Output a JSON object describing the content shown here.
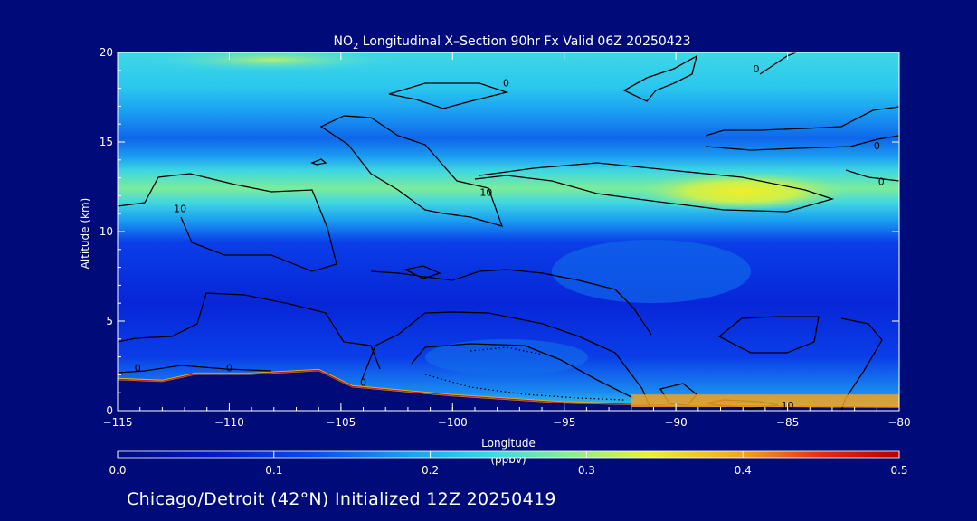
{
  "chart_data": {
    "type": "heatmap",
    "title_prefix": "NO",
    "title_sub": "2",
    "title_rest": " Longitudinal X–Section 90hr  Fx Valid 06Z 20250423",
    "xlabel": "Longitude",
    "ylabel": "Altitude (km)",
    "xlim": [
      -115,
      -80
    ],
    "ylim": [
      0,
      20
    ],
    "x_ticks": [
      -115,
      -110,
      -105,
      -100,
      -95,
      -90,
      -85,
      -80
    ],
    "x_tick_labels": [
      "−115",
      "−110",
      "−105",
      "−100",
      "−95",
      "−90",
      "−85",
      "−80"
    ],
    "y_ticks": [
      0,
      5,
      10,
      15,
      20
    ],
    "y_tick_labels": [
      "0",
      "5",
      "10",
      "15",
      "20"
    ],
    "colorbar": {
      "label": "(ppbv)",
      "range": [
        0.0,
        0.5
      ],
      "ticks": [
        0.0,
        0.1,
        0.2,
        0.3,
        0.4,
        0.5
      ],
      "tick_labels": [
        "0.0",
        "0.1",
        "0.2",
        "0.3",
        "0.4",
        "0.5"
      ],
      "colors": [
        "#000b7a",
        "#0018c8",
        "#0a4cf0",
        "#1aa6f2",
        "#3fd8e6",
        "#8af08a",
        "#e8f230",
        "#f4a41c",
        "#e03010",
        "#b20000"
      ]
    },
    "terrain_km": [
      {
        "lon": -115.0,
        "alt": 1.7
      },
      {
        "lon": -113.0,
        "alt": 1.6
      },
      {
        "lon": -111.5,
        "alt": 2.0
      },
      {
        "lon": -109.0,
        "alt": 2.0
      },
      {
        "lon": -106.0,
        "alt": 2.2
      },
      {
        "lon": -104.5,
        "alt": 1.3
      },
      {
        "lon": -100.0,
        "alt": 0.8
      },
      {
        "lon": -95.0,
        "alt": 0.4
      },
      {
        "lon": -90.0,
        "alt": 0.25
      },
      {
        "lon": -85.0,
        "alt": 0.2
      },
      {
        "lon": -80.0,
        "alt": 0.15
      }
    ],
    "contour_labels": [
      {
        "text": "0",
        "lon": -97.6,
        "alt": 18.3
      },
      {
        "text": "0",
        "lon": -86.4,
        "alt": 19.1
      },
      {
        "text": "10",
        "lon": -98.5,
        "alt": 12.2
      },
      {
        "text": "10",
        "lon": -112.2,
        "alt": 11.3
      },
      {
        "text": "0",
        "lon": -80.8,
        "alt": 12.8
      },
      {
        "text": "0",
        "lon": -81.0,
        "alt": 14.8
      },
      {
        "text": "0",
        "lon": -114.1,
        "alt": 2.4
      },
      {
        "text": "0",
        "lon": -110.0,
        "alt": 2.4
      },
      {
        "text": "0",
        "lon": -104.0,
        "alt": 1.6
      },
      {
        "text": "10",
        "lon": -85.0,
        "alt": 0.3
      }
    ],
    "bottom_title": "Chicago/Detroit (42°N) Initialized 12Z 20250419"
  }
}
